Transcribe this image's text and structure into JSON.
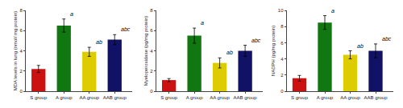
{
  "chart_data": [
    {
      "type": "bar",
      "ylabel": "MDA levels in lung (nmol/ mg protein)",
      "categories": [
        "S group",
        "A group",
        "AA group",
        "AAB group"
      ],
      "values": [
        2.2,
        6.5,
        3.9,
        5.1
      ],
      "errors": [
        0.35,
        0.65,
        0.45,
        0.5
      ],
      "annotations": [
        null,
        "a",
        "ab",
        "abc"
      ],
      "colors": [
        "#cc1111",
        "#117711",
        "#ddcc00",
        "#111166"
      ],
      "ylim": [
        0,
        8
      ],
      "yticks": [
        0,
        2,
        4,
        6,
        8
      ],
      "grid": false
    },
    {
      "type": "bar",
      "ylabel": "Myeloperoxidase (pg/mg protein)",
      "categories": [
        "S group",
        "A group",
        "AA group",
        "AAB group"
      ],
      "values": [
        1.1,
        5.5,
        2.8,
        4.0
      ],
      "errors": [
        0.15,
        0.75,
        0.5,
        0.55
      ],
      "annotations": [
        null,
        "a",
        "ab",
        "abc"
      ],
      "colors": [
        "#cc1111",
        "#117711",
        "#ddcc00",
        "#111166"
      ],
      "ylim": [
        0,
        8
      ],
      "yticks": [
        0,
        2,
        4,
        6,
        8
      ],
      "grid": false
    },
    {
      "type": "bar",
      "ylabel": "NADPH (pg/mg protein)",
      "categories": [
        "S group",
        "A group",
        "AA group",
        "AAB group"
      ],
      "values": [
        1.6,
        8.5,
        4.5,
        5.0
      ],
      "errors": [
        0.35,
        0.85,
        0.5,
        0.85
      ],
      "annotations": [
        null,
        "a",
        "ab",
        "abc"
      ],
      "colors": [
        "#cc1111",
        "#117711",
        "#ddcc00",
        "#111166"
      ],
      "ylim": [
        0,
        10
      ],
      "yticks": [
        0,
        2,
        4,
        6,
        8,
        10
      ],
      "grid": false
    }
  ]
}
